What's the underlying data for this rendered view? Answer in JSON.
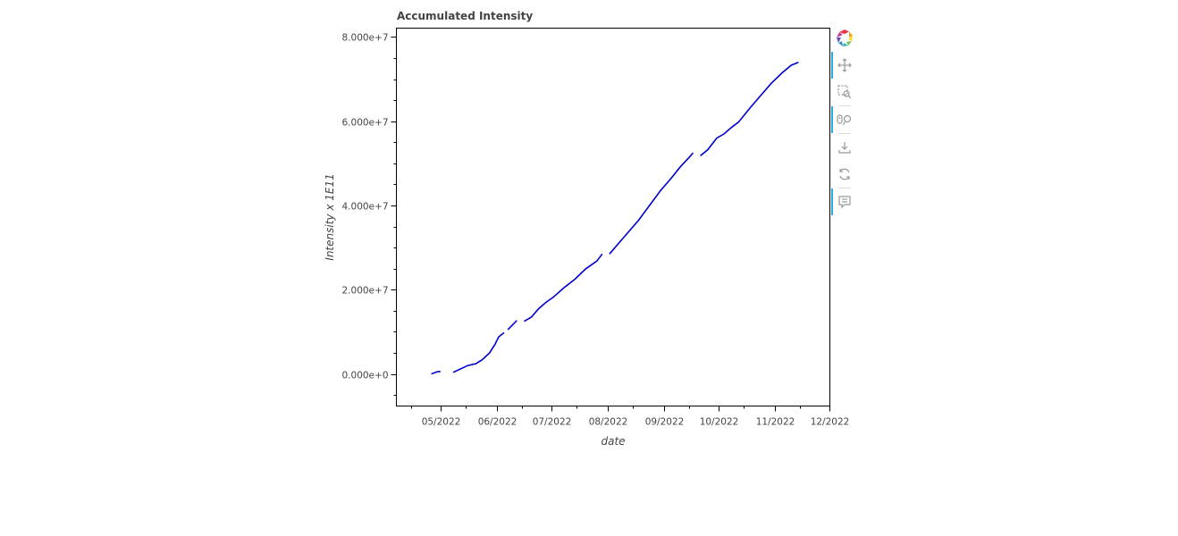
{
  "chart_data": {
    "type": "line",
    "title": "Accumulated Intensity",
    "xlabel": "date",
    "ylabel": "Intensity x 1E11",
    "x_type": "date",
    "xlim": [
      "2022-04-07",
      "2022-12-01"
    ],
    "ylim": [
      -7500000,
      82000000
    ],
    "x_ticks": [
      {
        "date": "2022-05-01",
        "label": "05/2022"
      },
      {
        "date": "2022-06-01",
        "label": "06/2022"
      },
      {
        "date": "2022-07-01",
        "label": "07/2022"
      },
      {
        "date": "2022-08-01",
        "label": "08/2022"
      },
      {
        "date": "2022-09-01",
        "label": "09/2022"
      },
      {
        "date": "2022-10-01",
        "label": "10/2022"
      },
      {
        "date": "2022-11-01",
        "label": "11/2022"
      },
      {
        "date": "2022-12-01",
        "label": "12/2022"
      }
    ],
    "y_ticks": [
      {
        "value": 0,
        "label": "0.000e+0"
      },
      {
        "value": 20000000,
        "label": "2.000e+7"
      },
      {
        "value": 40000000,
        "label": "4.000e+7"
      },
      {
        "value": 60000000,
        "label": "6.000e+7"
      },
      {
        "value": 80000000,
        "label": "8.000e+7"
      }
    ],
    "grid": false,
    "series": [
      {
        "color": "#0000cc",
        "segments": [
          [
            [
              "2022-04-26",
              0
            ],
            [
              "2022-04-29",
              500000
            ],
            [
              "2022-05-01",
              600000
            ]
          ],
          [
            [
              "2022-05-08",
              400000
            ],
            [
              "2022-05-12",
              1200000
            ],
            [
              "2022-05-16",
              2000000
            ],
            [
              "2022-05-20",
              2400000
            ]
          ],
          [
            [
              "2022-05-20",
              2300000
            ],
            [
              "2022-05-24",
              3400000
            ],
            [
              "2022-05-28",
              5000000
            ],
            [
              "2022-05-31",
              7000000
            ],
            [
              "2022-06-02",
              8800000
            ],
            [
              "2022-06-05",
              9800000
            ]
          ],
          [
            [
              "2022-06-07",
              10500000
            ],
            [
              "2022-06-10",
              11800000
            ],
            [
              "2022-06-12",
              12700000
            ]
          ],
          [
            [
              "2022-06-16",
              12500000
            ],
            [
              "2022-06-20",
              13500000
            ],
            [
              "2022-06-24",
              15500000
            ],
            [
              "2022-06-28",
              17000000
            ],
            [
              "2022-07-02",
              18200000
            ],
            [
              "2022-07-08",
              20500000
            ],
            [
              "2022-07-14",
              22500000
            ],
            [
              "2022-07-20",
              25000000
            ],
            [
              "2022-07-26",
              26800000
            ],
            [
              "2022-07-29",
              28500000
            ]
          ],
          [
            [
              "2022-08-02",
              28500000
            ],
            [
              "2022-08-08",
              31500000
            ],
            [
              "2022-08-14",
              34500000
            ],
            [
              "2022-08-18",
              36500000
            ],
            [
              "2022-08-24",
              40000000
            ],
            [
              "2022-08-30",
              43500000
            ],
            [
              "2022-09-05",
              46500000
            ],
            [
              "2022-09-10",
              49200000
            ],
            [
              "2022-09-15",
              51500000
            ],
            [
              "2022-09-17",
              52500000
            ]
          ],
          [
            [
              "2022-09-21",
              51800000
            ],
            [
              "2022-09-25",
              53200000
            ],
            [
              "2022-09-30",
              56000000
            ],
            [
              "2022-10-04",
              57000000
            ],
            [
              "2022-10-08",
              58500000
            ],
            [
              "2022-10-12",
              59800000
            ],
            [
              "2022-10-18",
              63000000
            ],
            [
              "2022-10-24",
              66000000
            ],
            [
              "2022-10-30",
              69000000
            ],
            [
              "2022-11-05",
              71500000
            ],
            [
              "2022-11-10",
              73300000
            ],
            [
              "2022-11-14",
              74000000
            ]
          ]
        ]
      }
    ]
  },
  "toolbar": {
    "tools": [
      {
        "name": "bokeh-logo",
        "icon": "bokeh-logo-icon",
        "active": false
      },
      {
        "name": "pan",
        "icon": "move-icon",
        "active": true
      },
      {
        "name": "box-zoom",
        "icon": "box-zoom-icon",
        "active": false
      },
      {
        "name": "wheel-zoom",
        "icon": "wheel-zoom-icon",
        "active": true
      },
      {
        "name": "save",
        "icon": "download-icon",
        "active": false
      },
      {
        "name": "reset",
        "icon": "reset-icon",
        "active": false
      },
      {
        "name": "hover",
        "icon": "hover-icon",
        "active": true
      }
    ]
  }
}
